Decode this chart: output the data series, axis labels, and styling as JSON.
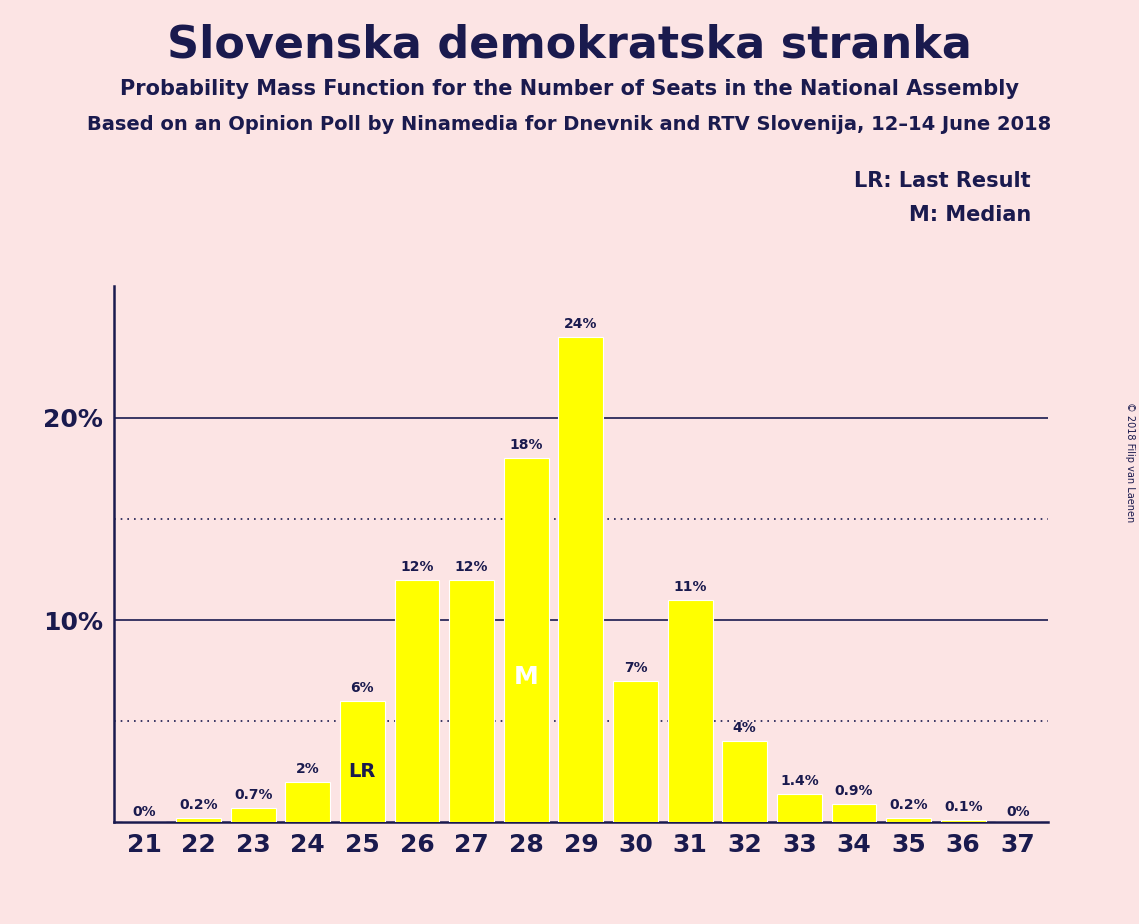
{
  "title": "Slovenska demokratska stranka",
  "subtitle1": "Probability Mass Function for the Number of Seats in the National Assembly",
  "subtitle2": "Based on an Opinion Poll by Ninamedia for Dnevnik and RTV Slovenija, 12–14 June 2018",
  "copyright": "© 2018 Filip van Laenen",
  "legend_lr": "LR: Last Result",
  "legend_m": "M: Median",
  "background_color": "#fce4e4",
  "bar_color": "#ffff00",
  "bar_edge_color": "#ffffff",
  "text_color": "#1a1a4e",
  "seats": [
    21,
    22,
    23,
    24,
    25,
    26,
    27,
    28,
    29,
    30,
    31,
    32,
    33,
    34,
    35,
    36,
    37
  ],
  "values": [
    0.0,
    0.2,
    0.7,
    2.0,
    6.0,
    12.0,
    12.0,
    18.0,
    24.0,
    7.0,
    11.0,
    4.0,
    1.4,
    0.9,
    0.2,
    0.1,
    0.0
  ],
  "labels": [
    "0%",
    "0.2%",
    "0.7%",
    "2%",
    "6%",
    "12%",
    "12%",
    "18%",
    "24%",
    "7%",
    "11%",
    "4%",
    "1.4%",
    "0.9%",
    "0.2%",
    "0.1%",
    "0%"
  ],
  "ytick_labels": [
    "",
    "10%",
    "20%"
  ],
  "ytick_values": [
    0,
    10,
    20
  ],
  "dotted_lines": [
    5.0,
    15.0
  ],
  "lr_seat": 25,
  "median_seat": 28,
  "ylim": [
    0,
    26.5
  ],
  "bar_width": 0.82
}
